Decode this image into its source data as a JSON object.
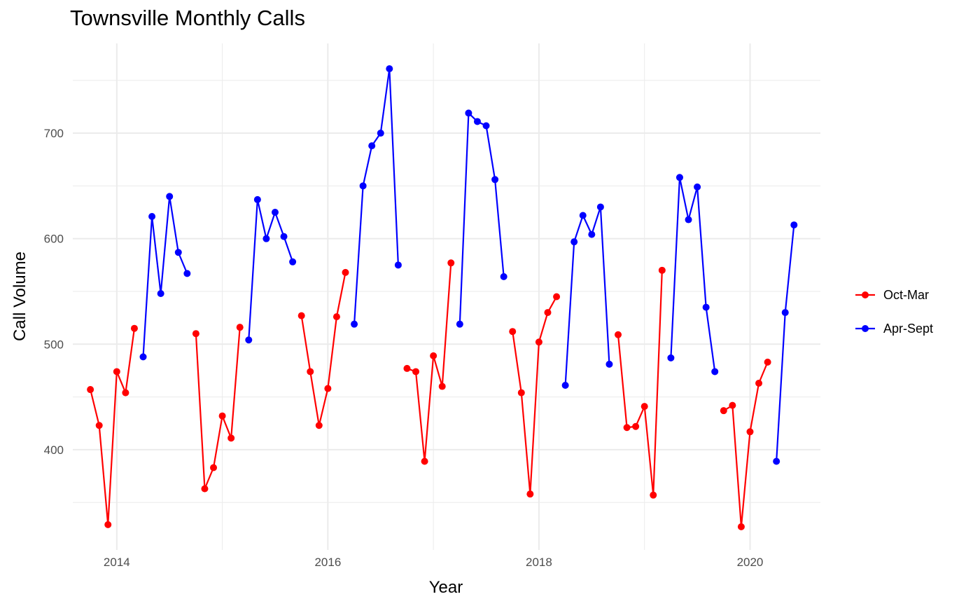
{
  "chart_data": {
    "type": "line",
    "title": "Townsville Monthly Calls",
    "xlabel": "Year",
    "ylabel": "Call Volume",
    "x_ticks": [
      "2014",
      "2016",
      "2018",
      "2020"
    ],
    "y_ticks": [
      "400",
      "500",
      "600",
      "700"
    ],
    "xlim": [
      "2013-08",
      "2020-09"
    ],
    "ylim": [
      305,
      785
    ],
    "grid": true,
    "legend_position": "right",
    "series": [
      {
        "name": "Oct-Mar",
        "color": "#ff0000"
      },
      {
        "name": "Apr-Sept",
        "color": "#0000ff"
      }
    ],
    "months": [
      "2013-10",
      "2013-11",
      "2013-12",
      "2014-01",
      "2014-02",
      "2014-03",
      "2014-04",
      "2014-05",
      "2014-06",
      "2014-07",
      "2014-08",
      "2014-09",
      "2014-10",
      "2014-11",
      "2014-12",
      "2015-01",
      "2015-02",
      "2015-03",
      "2015-04",
      "2015-05",
      "2015-06",
      "2015-07",
      "2015-08",
      "2015-09",
      "2015-10",
      "2015-11",
      "2015-12",
      "2016-01",
      "2016-02",
      "2016-03",
      "2016-04",
      "2016-05",
      "2016-06",
      "2016-07",
      "2016-08",
      "2016-09",
      "2016-10",
      "2016-11",
      "2016-12",
      "2017-01",
      "2017-02",
      "2017-03",
      "2017-04",
      "2017-05",
      "2017-06",
      "2017-07",
      "2017-08",
      "2017-09",
      "2017-10",
      "2017-11",
      "2017-12",
      "2018-01",
      "2018-02",
      "2018-03",
      "2018-04",
      "2018-05",
      "2018-06",
      "2018-07",
      "2018-08",
      "2018-09",
      "2018-10",
      "2018-11",
      "2018-12",
      "2019-01",
      "2019-02",
      "2019-03",
      "2019-04",
      "2019-05",
      "2019-06",
      "2019-07",
      "2019-08",
      "2019-09",
      "2019-10",
      "2019-11",
      "2019-12",
      "2020-01",
      "2020-02",
      "2020-03",
      "2020-04",
      "2020-05",
      "2020-06"
    ],
    "values": [
      457,
      423,
      329,
      474,
      454,
      515,
      488,
      621,
      548,
      640,
      587,
      567,
      510,
      363,
      383,
      432,
      411,
      516,
      504,
      637,
      600,
      625,
      602,
      578,
      527,
      474,
      423,
      458,
      526,
      568,
      519,
      650,
      688,
      700,
      761,
      575,
      477,
      474,
      389,
      489,
      460,
      577,
      519,
      719,
      711,
      707,
      656,
      564,
      512,
      454,
      358,
      502,
      530,
      545,
      461,
      597,
      622,
      604,
      630,
      481,
      509,
      421,
      422,
      441,
      357,
      570,
      487,
      658,
      618,
      649,
      535,
      474,
      437,
      442,
      327,
      417,
      463,
      483,
      389,
      530,
      613
    ]
  }
}
